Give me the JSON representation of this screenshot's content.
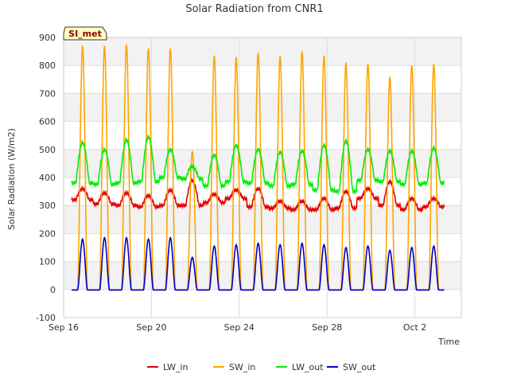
{
  "chart_data": {
    "type": "line",
    "title": "Solar Radiation from CNR1",
    "xlabel": "Time",
    "ylabel": "Solar Radiation (W/m2)",
    "badge": "SI_met",
    "ylim": [
      -100,
      900
    ],
    "xlim": [
      "2023-09-16",
      "2023-10-04"
    ],
    "yticks": [
      -100,
      0,
      100,
      200,
      300,
      400,
      500,
      600,
      700,
      800,
      900
    ],
    "xticks": [
      {
        "label": "Sep 16",
        "day": 0
      },
      {
        "label": "Sep 20",
        "day": 4
      },
      {
        "label": "Sep 24",
        "day": 8
      },
      {
        "label": "Sep 28",
        "day": 12
      },
      {
        "label": "Oct 2",
        "day": 16
      }
    ],
    "grid": true,
    "legend_position": "bottom",
    "series": [
      {
        "name": "LW_in",
        "color": "#e60000",
        "daily_peak": [
          360,
          345,
          345,
          335,
          355,
          390,
          340,
          355,
          360,
          315,
          315,
          325,
          350,
          360,
          385,
          325,
          325
        ],
        "daily_base": [
          320,
          305,
          300,
          295,
          300,
          300,
          310,
          325,
          295,
          290,
          285,
          285,
          290,
          325,
          300,
          285,
          295
        ]
      },
      {
        "name": "SW_in",
        "color": "#ffa500",
        "daily_peak": [
          870,
          870,
          875,
          860,
          860,
          495,
          835,
          830,
          845,
          835,
          850,
          835,
          810,
          805,
          760,
          800,
          805
        ],
        "daily_base": [
          0,
          0,
          0,
          0,
          0,
          0,
          0,
          0,
          0,
          0,
          0,
          0,
          0,
          0,
          0,
          0,
          0
        ]
      },
      {
        "name": "LW_out",
        "color": "#00ee00",
        "daily_peak": [
          525,
          500,
          535,
          545,
          500,
          440,
          480,
          515,
          500,
          490,
          495,
          515,
          530,
          500,
          495,
          495,
          505
        ],
        "daily_base": [
          380,
          375,
          380,
          385,
          400,
          395,
          370,
          385,
          380,
          370,
          375,
          355,
          350,
          390,
          385,
          375,
          380
        ]
      },
      {
        "name": "SW_out",
        "color": "#0000cc",
        "daily_peak": [
          180,
          185,
          185,
          180,
          185,
          115,
          155,
          160,
          165,
          160,
          165,
          160,
          150,
          155,
          140,
          150,
          155
        ],
        "daily_base": [
          -2,
          -2,
          -2,
          -2,
          -2,
          -2,
          -2,
          -2,
          -2,
          -2,
          -2,
          -2,
          -2,
          -2,
          -2,
          -2,
          -2
        ]
      }
    ]
  }
}
